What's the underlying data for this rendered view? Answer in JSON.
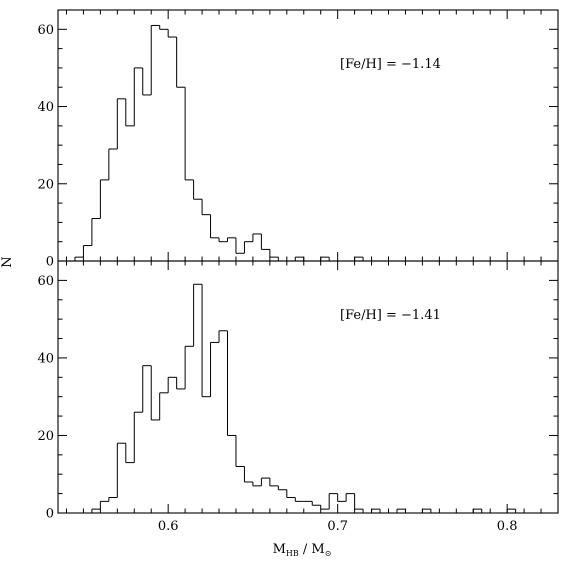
{
  "chart_data": [
    {
      "type": "histogram",
      "panel": "top",
      "annotation": "[Fe/H] = −1.14",
      "xlim": [
        0.535,
        0.83
      ],
      "ylim": [
        0,
        65
      ],
      "yticks": [
        0,
        20,
        40,
        60
      ],
      "bin_width": 0.005,
      "bins": [
        {
          "x": 0.54,
          "n": 0
        },
        {
          "x": 0.545,
          "n": 1
        },
        {
          "x": 0.55,
          "n": 4
        },
        {
          "x": 0.555,
          "n": 11
        },
        {
          "x": 0.56,
          "n": 21
        },
        {
          "x": 0.565,
          "n": 29
        },
        {
          "x": 0.57,
          "n": 42
        },
        {
          "x": 0.575,
          "n": 35
        },
        {
          "x": 0.58,
          "n": 50
        },
        {
          "x": 0.585,
          "n": 43
        },
        {
          "x": 0.59,
          "n": 61
        },
        {
          "x": 0.595,
          "n": 60
        },
        {
          "x": 0.6,
          "n": 58
        },
        {
          "x": 0.605,
          "n": 45
        },
        {
          "x": 0.61,
          "n": 21
        },
        {
          "x": 0.615,
          "n": 16
        },
        {
          "x": 0.62,
          "n": 12
        },
        {
          "x": 0.625,
          "n": 6
        },
        {
          "x": 0.63,
          "n": 5
        },
        {
          "x": 0.635,
          "n": 6
        },
        {
          "x": 0.64,
          "n": 2
        },
        {
          "x": 0.645,
          "n": 5
        },
        {
          "x": 0.65,
          "n": 7
        },
        {
          "x": 0.655,
          "n": 3
        },
        {
          "x": 0.66,
          "n": 1
        },
        {
          "x": 0.665,
          "n": 0
        },
        {
          "x": 0.67,
          "n": 0
        },
        {
          "x": 0.675,
          "n": 1
        },
        {
          "x": 0.68,
          "n": 0
        },
        {
          "x": 0.685,
          "n": 0
        },
        {
          "x": 0.69,
          "n": 1
        },
        {
          "x": 0.695,
          "n": 0
        },
        {
          "x": 0.7,
          "n": 0
        },
        {
          "x": 0.705,
          "n": 0
        },
        {
          "x": 0.71,
          "n": 1
        },
        {
          "x": 0.715,
          "n": 0
        }
      ]
    },
    {
      "type": "histogram",
      "panel": "bottom",
      "annotation": "[Fe/H] = −1.41",
      "xlim": [
        0.535,
        0.83
      ],
      "ylim": [
        0,
        65
      ],
      "yticks": [
        0,
        20,
        40,
        60
      ],
      "xticks": [
        0.6,
        0.7,
        0.8
      ],
      "xtick_labels": [
        "0.6",
        "0.7",
        "0.8"
      ],
      "bin_width": 0.005,
      "bins": [
        {
          "x": 0.55,
          "n": 0
        },
        {
          "x": 0.555,
          "n": 1
        },
        {
          "x": 0.56,
          "n": 3
        },
        {
          "x": 0.565,
          "n": 4
        },
        {
          "x": 0.57,
          "n": 18
        },
        {
          "x": 0.575,
          "n": 13
        },
        {
          "x": 0.58,
          "n": 26
        },
        {
          "x": 0.585,
          "n": 38
        },
        {
          "x": 0.59,
          "n": 24
        },
        {
          "x": 0.595,
          "n": 31
        },
        {
          "x": 0.6,
          "n": 35
        },
        {
          "x": 0.605,
          "n": 32
        },
        {
          "x": 0.61,
          "n": 43
        },
        {
          "x": 0.615,
          "n": 59
        },
        {
          "x": 0.62,
          "n": 30
        },
        {
          "x": 0.625,
          "n": 44
        },
        {
          "x": 0.63,
          "n": 47
        },
        {
          "x": 0.635,
          "n": 20
        },
        {
          "x": 0.64,
          "n": 12
        },
        {
          "x": 0.645,
          "n": 8
        },
        {
          "x": 0.65,
          "n": 7
        },
        {
          "x": 0.655,
          "n": 9
        },
        {
          "x": 0.66,
          "n": 7
        },
        {
          "x": 0.665,
          "n": 6
        },
        {
          "x": 0.67,
          "n": 4
        },
        {
          "x": 0.675,
          "n": 3
        },
        {
          "x": 0.68,
          "n": 3
        },
        {
          "x": 0.685,
          "n": 2
        },
        {
          "x": 0.69,
          "n": 1
        },
        {
          "x": 0.695,
          "n": 5
        },
        {
          "x": 0.7,
          "n": 3
        },
        {
          "x": 0.705,
          "n": 5
        },
        {
          "x": 0.71,
          "n": 1
        },
        {
          "x": 0.715,
          "n": 0
        },
        {
          "x": 0.72,
          "n": 1
        },
        {
          "x": 0.725,
          "n": 0
        },
        {
          "x": 0.73,
          "n": 0
        },
        {
          "x": 0.735,
          "n": 1
        },
        {
          "x": 0.74,
          "n": 0
        },
        {
          "x": 0.745,
          "n": 0
        },
        {
          "x": 0.75,
          "n": 1
        },
        {
          "x": 0.755,
          "n": 0
        },
        {
          "x": 0.76,
          "n": 0
        },
        {
          "x": 0.765,
          "n": 0
        },
        {
          "x": 0.77,
          "n": 0
        },
        {
          "x": 0.775,
          "n": 0
        },
        {
          "x": 0.78,
          "n": 1
        },
        {
          "x": 0.785,
          "n": 0
        },
        {
          "x": 0.79,
          "n": 0
        },
        {
          "x": 0.795,
          "n": 0
        },
        {
          "x": 0.8,
          "n": 1
        },
        {
          "x": 0.805,
          "n": 0
        }
      ]
    }
  ],
  "axes": {
    "ylabel": "N",
    "xlabel_main": "M",
    "xlabel_sub1": "HB",
    "xlabel_sep": " / M",
    "xlabel_sub2": "⊙"
  }
}
